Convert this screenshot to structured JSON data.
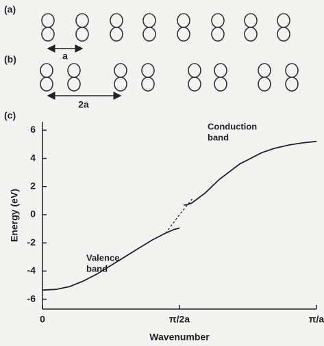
{
  "panels": {
    "a": {
      "label": "(a)",
      "spacing": "a"
    },
    "b": {
      "label": "(b)",
      "spacing": "2a"
    }
  },
  "chart_data": {
    "type": "line",
    "panel_label": "(c)",
    "xlabel": "Wavenumber",
    "ylabel": "Energy (eV)",
    "xlim": [
      0,
      1
    ],
    "ylim": [
      -6.7,
      6.6
    ],
    "xticks": [
      0,
      {
        "value": 0.5,
        "label": "π/2a"
      },
      {
        "value": 1,
        "label": "π/a"
      }
    ],
    "yticks": [
      -6,
      -4,
      -2,
      0,
      2,
      4,
      6
    ],
    "annotations": [
      [
        "Conduction",
        "band"
      ],
      [
        "Valence",
        "band"
      ]
    ],
    "series": [
      {
        "color": "#222222",
        "style": "solid",
        "x": [
          0,
          0.05,
          0.1,
          0.15,
          0.2,
          0.25,
          0.3,
          0.35,
          0.4,
          0.45,
          0.48,
          0.5
        ],
        "values": [
          -5.35,
          -5.3,
          -5.1,
          -4.7,
          -4.2,
          -3.6,
          -3.0,
          -2.4,
          -1.8,
          -1.3,
          -1.05,
          -0.95
        ]
      },
      {
        "color": "#222222",
        "style": "solid",
        "x": [
          0.515,
          0.53,
          0.545,
          0.595,
          0.645,
          0.72,
          0.8,
          0.845,
          0.9,
          0.95,
          1
        ],
        "values": [
          0.68,
          0.72,
          0.83,
          1.56,
          2.5,
          3.6,
          4.4,
          4.7,
          4.95,
          5.1,
          5.2
        ]
      },
      {
        "color": "#222222",
        "style": "dashed",
        "x": [
          0.45,
          0.5,
          0.55
        ],
        "values": [
          -1.3,
          0.0,
          1.2
        ]
      }
    ]
  }
}
